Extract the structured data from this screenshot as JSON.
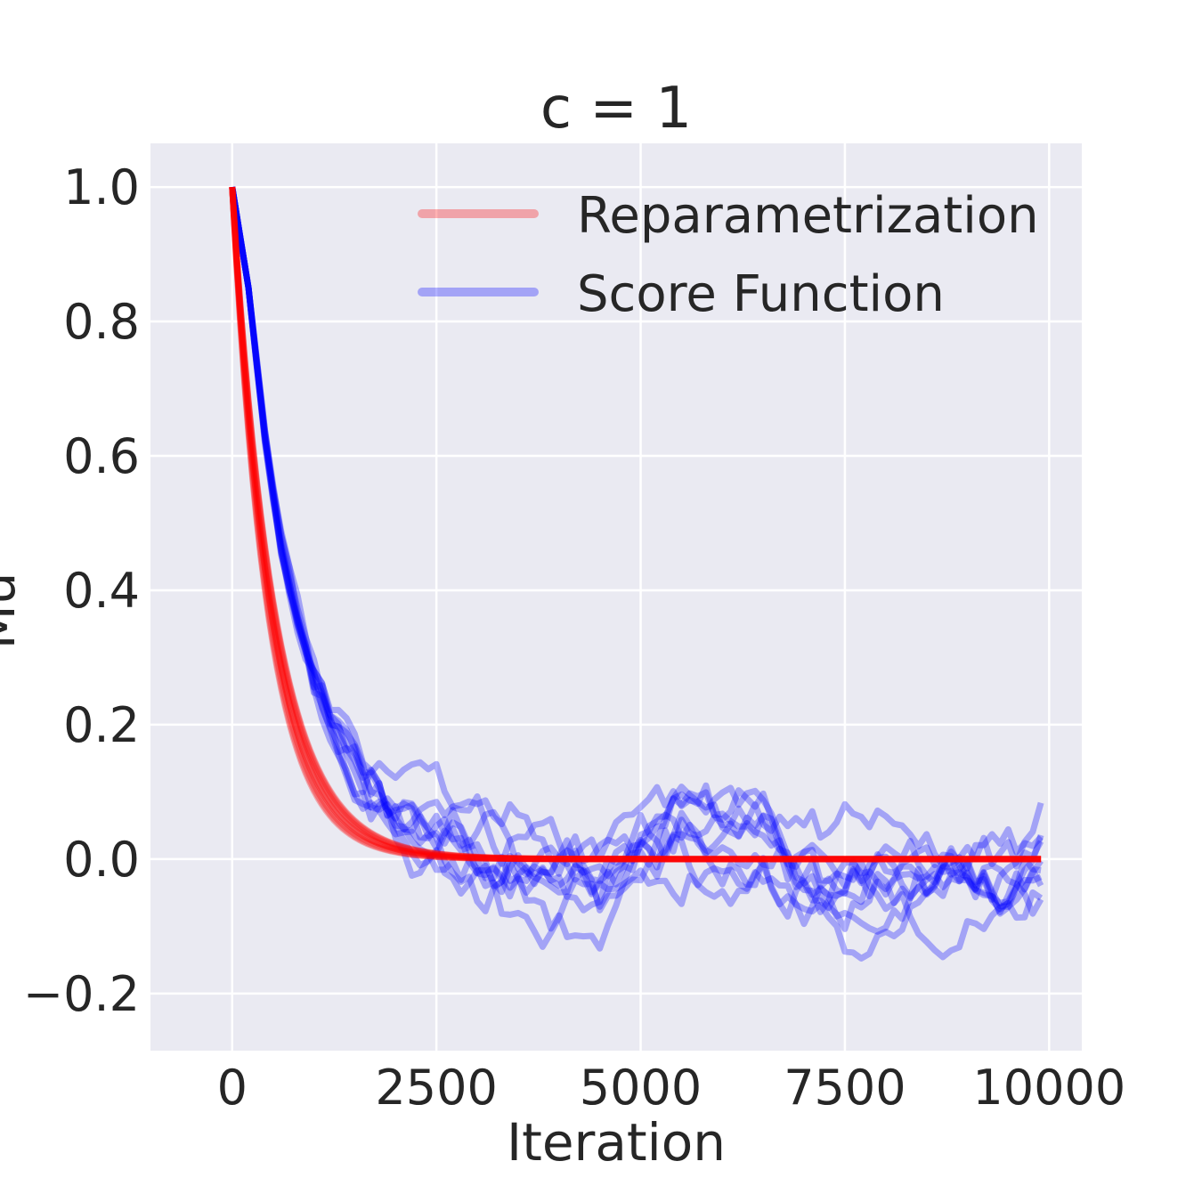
{
  "chart_data": {
    "type": "line",
    "title": "c = 1",
    "xlabel": "Iteration",
    "ylabel": "Mu",
    "xlim": [
      -1000,
      10400
    ],
    "ylim": [
      -0.285,
      1.065
    ],
    "x_ticks": [
      0,
      2500,
      5000,
      7500,
      10000
    ],
    "x_tick_labels": [
      "0",
      "2500",
      "5000",
      "7500",
      "10000"
    ],
    "y_ticks": [
      -0.2,
      0.0,
      0.2,
      0.4,
      0.6,
      0.8,
      1.0
    ],
    "y_tick_labels": [
      "−0.2",
      "0.0",
      "0.2",
      "0.4",
      "0.6",
      "0.8",
      "1.0"
    ],
    "grid": true,
    "background": "#eaeaf2",
    "legend": {
      "position": "top-right",
      "entries": [
        {
          "label": "Reparametrization",
          "color": "#ff0000"
        },
        {
          "label": "Score Function",
          "color": "#0000ff"
        }
      ]
    },
    "series": [
      {
        "name": "Reparametrization",
        "color": "#ff0000",
        "alpha": 0.3,
        "runs": 10,
        "x": [
          0,
          200,
          400,
          600,
          800,
          1000,
          1200,
          1400,
          1600,
          1800,
          2000,
          2500,
          3000,
          4000,
          5000,
          6000,
          7000,
          8000,
          9000,
          9900
        ],
        "y": [
          1.0,
          0.77,
          0.58,
          0.43,
          0.31,
          0.22,
          0.15,
          0.1,
          0.07,
          0.05,
          0.035,
          0.012,
          0.004,
          0.0,
          0.0,
          0.0,
          0.0,
          0.0,
          0.0,
          0.0
        ]
      },
      {
        "name": "Score Function",
        "color": "#0000ff",
        "alpha": 0.3,
        "runs": 10,
        "x": [
          0,
          200,
          400,
          600,
          800,
          1000,
          1200,
          1400,
          1600,
          1800,
          2000,
          2500,
          3000,
          3500,
          4000,
          4500,
          5000,
          5500,
          6000,
          6500,
          7000,
          7500,
          8000,
          8500,
          9000,
          9500,
          9900
        ],
        "y": [
          1.0,
          0.85,
          0.63,
          0.47,
          0.36,
          0.27,
          0.21,
          0.16,
          0.12,
          0.1,
          0.08,
          0.04,
          0.01,
          0.0,
          -0.02,
          -0.04,
          0.02,
          0.06,
          0.03,
          0.05,
          0.0,
          -0.02,
          0.0,
          -0.01,
          0.0,
          -0.02,
          0.0
        ]
      }
    ]
  }
}
